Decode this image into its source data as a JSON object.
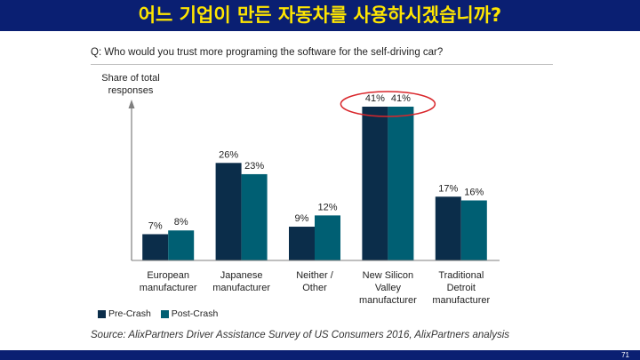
{
  "slide": {
    "title": "어느 기업이 만든 자동차를 사용하시겠습니까?",
    "question": "Q: Who would you trust more programing the software for the self-driving car?",
    "source": "Source: AlixPartners Driver Assistance Survey of US Consumers 2016, AlixPartners analysis",
    "page_number": "71"
  },
  "chart_data": {
    "type": "bar",
    "ylabel": "Share of total responses",
    "categories": [
      "European manufacturer",
      "Japanese manufacturer",
      "Neither / Other",
      "New Silicon Valley manufacturer",
      "Traditional Detroit manufacturer"
    ],
    "category_lines": [
      [
        "European",
        "manufacturer"
      ],
      [
        "Japanese",
        "manufacturer"
      ],
      [
        "Neither /",
        "Other"
      ],
      [
        "New Silicon",
        "Valley",
        "manufacturer"
      ],
      [
        "Traditional",
        "Detroit",
        "manufacturer"
      ]
    ],
    "series": [
      {
        "name": "Pre-Crash",
        "values": [
          7,
          26,
          9,
          41,
          17
        ],
        "labels": [
          "7%",
          "26%",
          "9%",
          "41%",
          "17%"
        ],
        "color": "#0b2d4a"
      },
      {
        "name": "Post-Crash",
        "values": [
          8,
          23,
          12,
          41,
          16
        ],
        "labels": [
          "8%",
          "23%",
          "12%",
          "41%",
          "16%"
        ],
        "color": "#005f73"
      }
    ],
    "ylim": [
      0,
      41
    ],
    "highlight_category": "New Silicon Valley manufacturer",
    "highlight_color": "#d9262b"
  }
}
